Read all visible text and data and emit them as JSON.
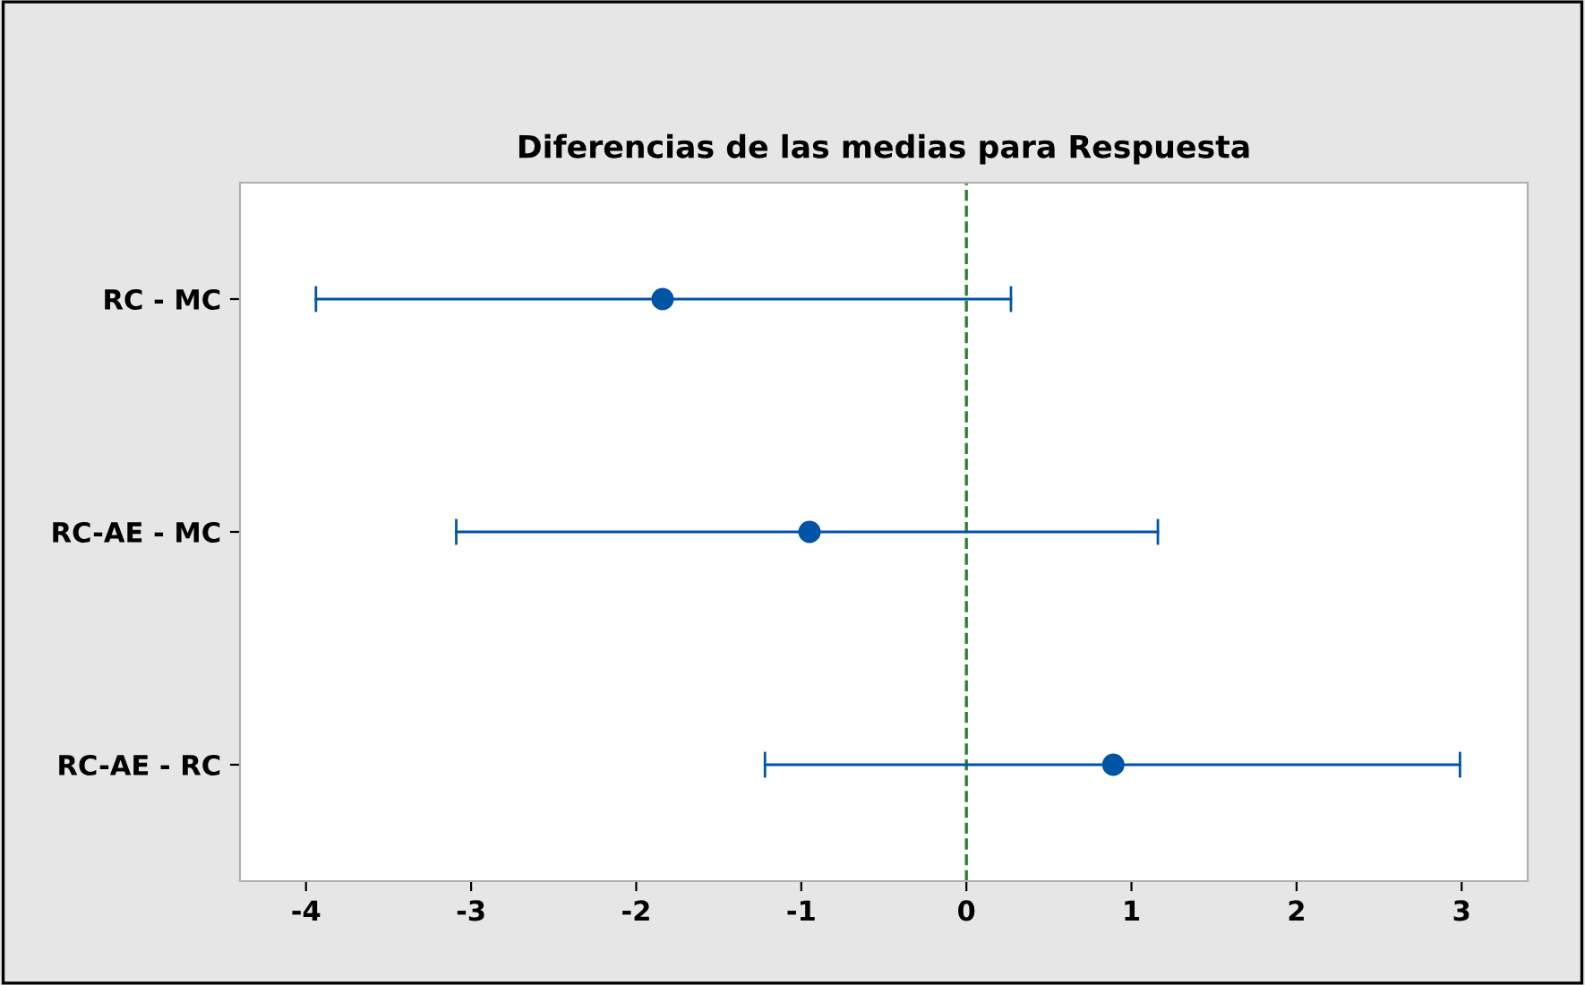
{
  "chart_data": {
    "type": "scatter",
    "orientation": "horizontal",
    "title": "Diferencias de las medias para Respuesta",
    "categories": [
      "RC - MC",
      "RC-AE - MC",
      "RC-AE - RC"
    ],
    "values": [
      -1.84,
      -0.95,
      0.89
    ],
    "errors": [
      [
        -3.94,
        0.27
      ],
      [
        -3.09,
        1.16
      ],
      [
        -1.22,
        2.99
      ]
    ],
    "color": "#0054a6",
    "marker": "circle",
    "xlim": [
      -4.4,
      3.4
    ],
    "xticks": [
      -4,
      -3,
      -2,
      -1,
      0,
      1,
      2,
      3
    ],
    "ref_lines": [
      {
        "axis": "x",
        "value": 0,
        "color": "#2e7d32",
        "line_style": "dashed"
      }
    ],
    "grid": false,
    "legend": false
  }
}
